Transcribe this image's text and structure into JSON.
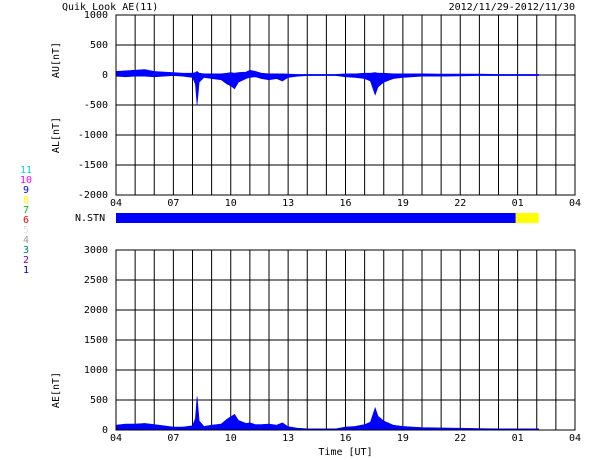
{
  "title": "Quik Look AE(11)",
  "date_range": "2012/11/29-2012/11/30",
  "stations": {
    "label": "N.STN",
    "segments": [
      {
        "start": 4,
        "end": 24.9,
        "count": 9
      },
      {
        "start": 24.9,
        "end": 26.1,
        "count": 8
      }
    ],
    "scale": [
      {
        "count": 11,
        "color": "#00d8d8"
      },
      {
        "count": 10,
        "color": "#ff00ff"
      },
      {
        "count": 9,
        "color": "#0000ff"
      },
      {
        "count": 8,
        "color": "#ffff00"
      },
      {
        "count": 7,
        "color": "#00c000"
      },
      {
        "count": 6,
        "color": "#ff0000"
      },
      {
        "count": 5,
        "color": "#e0e0e0"
      },
      {
        "count": 4,
        "color": "#a0a0a0"
      },
      {
        "count": 3,
        "color": "#008080"
      },
      {
        "count": 2,
        "color": "#8000c0"
      },
      {
        "count": 1,
        "color": "#0000a0"
      }
    ]
  },
  "chart_data": [
    {
      "type": "area",
      "y_labels": [
        "AU[nT]",
        "AL[nT]"
      ],
      "xlim": [
        4,
        28
      ],
      "ylim": [
        -2000,
        1000
      ],
      "xticks": [
        {
          "value": 4,
          "label": "04"
        },
        {
          "value": 7,
          "label": "07"
        },
        10,
        13,
        16,
        19,
        22,
        {
          "value": 25,
          "label": "01"
        },
        {
          "value": 28,
          "label": "04"
        }
      ],
      "yticks": [
        -2000,
        -1500,
        -1000,
        -500,
        0,
        500,
        1000
      ],
      "xgrid": [
        5,
        6,
        8,
        9,
        11,
        12,
        14,
        15,
        17,
        18,
        20,
        21,
        23,
        24,
        26,
        27
      ],
      "x": [
        4,
        4.5,
        5,
        5.5,
        6,
        6.5,
        7,
        7.5,
        8,
        8.15,
        8.24,
        8.35,
        8.6,
        9,
        9.5,
        9.8,
        10,
        10.2,
        10.4,
        10.8,
        11,
        11.3,
        11.6,
        12,
        12.4,
        12.7,
        13,
        13.5,
        14,
        14.5,
        15,
        15.5,
        16,
        16.5,
        17,
        17.3,
        17.55,
        17.7,
        18,
        18.5,
        19,
        19.5,
        20,
        21,
        22,
        23,
        24,
        25,
        26.1
      ],
      "series": [
        {
          "color": "#0000ff",
          "values": [
            60,
            70,
            80,
            90,
            60,
            50,
            40,
            30,
            30,
            40,
            60,
            30,
            20,
            20,
            20,
            30,
            40,
            30,
            40,
            50,
            80,
            60,
            30,
            20,
            20,
            20,
            15,
            10,
            10,
            10,
            10,
            10,
            20,
            20,
            30,
            30,
            40,
            30,
            30,
            20,
            20,
            20,
            20,
            15,
            15,
            15,
            10,
            10,
            10
          ]
        },
        {
          "color": "#0000ff",
          "values": [
            -20,
            -30,
            -20,
            -20,
            -30,
            -20,
            -10,
            -20,
            -40,
            -150,
            -500,
            -120,
            -40,
            -60,
            -80,
            -150,
            -180,
            -230,
            -120,
            -60,
            -40,
            -30,
            -60,
            -80,
            -60,
            -100,
            -40,
            -20,
            -10,
            -10,
            -10,
            -10,
            -30,
            -40,
            -60,
            -100,
            -330,
            -200,
            -120,
            -60,
            -40,
            -30,
            -20,
            -20,
            -15,
            -10,
            -10,
            -10,
            -10
          ]
        }
      ]
    },
    {
      "type": "area",
      "y_labels": [
        "AE[nT]"
      ],
      "x_label": "Time [UT]",
      "xlim": [
        4,
        28
      ],
      "ylim": [
        0,
        3000
      ],
      "xticks": [
        {
          "value": 4,
          "label": "04"
        },
        {
          "value": 7,
          "label": "07"
        },
        10,
        13,
        16,
        19,
        22,
        {
          "value": 25,
          "label": "01"
        },
        {
          "value": 28,
          "label": "04"
        }
      ],
      "yticks": [
        0,
        500,
        1000,
        1500,
        2000,
        2500,
        3000
      ],
      "xgrid": [
        5,
        6,
        8,
        9,
        11,
        12,
        14,
        15,
        17,
        18,
        20,
        21,
        23,
        24,
        26,
        27
      ],
      "x": [
        4,
        4.5,
        5,
        5.5,
        6,
        6.5,
        7,
        7.5,
        8,
        8.15,
        8.24,
        8.35,
        8.6,
        9,
        9.5,
        9.8,
        10,
        10.2,
        10.4,
        10.8,
        11,
        11.3,
        11.6,
        12,
        12.4,
        12.7,
        13,
        13.5,
        14,
        14.5,
        15,
        15.5,
        16,
        16.5,
        17,
        17.3,
        17.55,
        17.7,
        18,
        18.5,
        19,
        19.5,
        20,
        21,
        22,
        23,
        24,
        25,
        26.1
      ],
      "series": [
        {
          "color": "#0000ff",
          "values": [
            80,
            100,
            100,
            110,
            90,
            70,
            50,
            50,
            70,
            190,
            560,
            150,
            60,
            80,
            100,
            180,
            220,
            260,
            160,
            110,
            120,
            90,
            90,
            100,
            80,
            120,
            55,
            30,
            20,
            20,
            20,
            20,
            50,
            60,
            90,
            130,
            370,
            230,
            150,
            80,
            60,
            50,
            40,
            35,
            30,
            25,
            20,
            20,
            20
          ]
        }
      ]
    }
  ]
}
